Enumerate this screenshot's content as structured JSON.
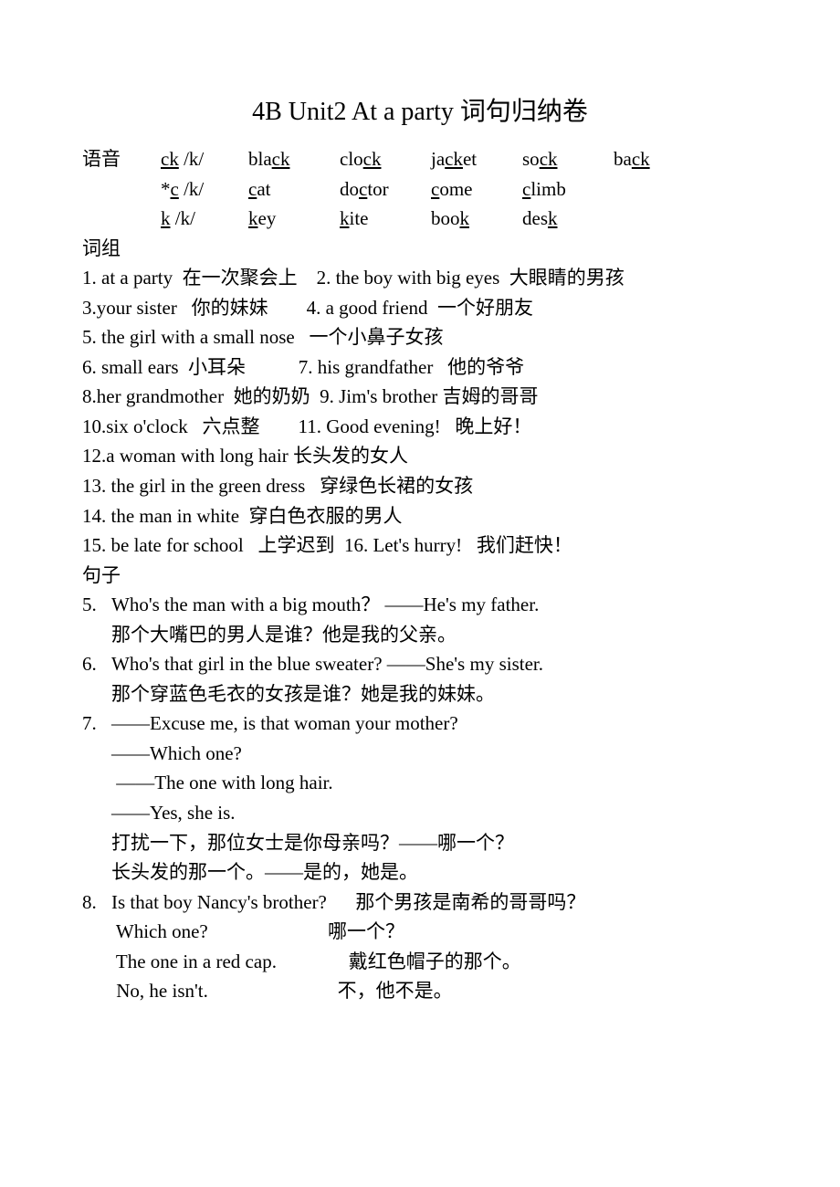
{
  "title": "4B Unit2 At a party 词句归纳卷",
  "phonetics_label": "语音",
  "phonetics": {
    "rows": [
      {
        "pattern_pre": "",
        "pattern_u": "ck",
        "pattern_post": " /k/",
        "words": [
          {
            "pre": "bla",
            "u": "ck",
            "post": ""
          },
          {
            "pre": "clo",
            "u": "ck",
            "post": ""
          },
          {
            "pre": "ja",
            "u": "ck",
            "post": "et"
          },
          {
            "pre": "so",
            "u": "ck",
            "post": ""
          },
          {
            "pre": "ba",
            "u": "ck",
            "post": ""
          }
        ]
      },
      {
        "pattern_pre": "*",
        "pattern_u": "c",
        "pattern_post": " /k/",
        "words": [
          {
            "pre": "",
            "u": "c",
            "post": "at"
          },
          {
            "pre": "do",
            "u": "c",
            "post": "tor"
          },
          {
            "pre": "",
            "u": "c",
            "post": "ome"
          },
          {
            "pre": "",
            "u": "c",
            "post": "limb"
          }
        ]
      },
      {
        "pattern_pre": "",
        "pattern_u": "k",
        "pattern_post": " /k/",
        "words": [
          {
            "pre": "",
            "u": "k",
            "post": "ey"
          },
          {
            "pre": "",
            "u": "k",
            "post": "ite"
          },
          {
            "pre": "boo",
            "u": "k",
            "post": ""
          },
          {
            "pre": "des",
            "u": "k",
            "post": ""
          }
        ]
      }
    ]
  },
  "phrases_label": "词组",
  "phrases": [
    "1. at a party  在一次聚会上    2. the boy with big eyes  大眼睛的男孩",
    "3.your sister   你的妹妹        4. a good friend  一个好朋友",
    "5. the girl with a small nose   一个小鼻子女孩",
    "6. small ears  小耳朵           7. his grandfather   他的爷爷",
    "8.her grandmother  她的奶奶  9. Jim's brother 吉姆的哥哥",
    "10.six o'clock   六点整        11. Good evening!   晚上好！",
    "12.a woman with long hair 长头发的女人",
    "13. the girl in the green dress   穿绿色长裙的女孩",
    "14. the man in white  穿白色衣服的男人",
    "15. be late for school   上学迟到  16. Let's hurry!   我们赶快！"
  ],
  "sentences_label": "句子",
  "sentences": [
    {
      "num": "5.",
      "lines": [
        "Who's the man with a big mouth？ ——He's my father.",
        "那个大嘴巴的男人是谁？他是我的父亲。"
      ]
    },
    {
      "num": "6.",
      "lines": [
        "Who's that girl in the blue sweater? ——She's my sister.",
        "那个穿蓝色毛衣的女孩是谁？她是我的妹妹。"
      ]
    },
    {
      "num": "7.",
      "lines": [
        "——Excuse me, is that woman your mother?",
        "——Which one?",
        " ——The one with long hair.",
        "——Yes, she is.",
        "打扰一下，那位女士是你母亲吗？——哪一个？",
        "长头发的那一个。——是的，她是。"
      ]
    },
    {
      "num": "8.",
      "lines": [
        "Is that boy Nancy's brother?      那个男孩是南希的哥哥吗？",
        " Which one?                         哪一个？",
        " The one in a red cap.               戴红色帽子的那个。",
        " No, he isn't.                           不，他不是。"
      ]
    }
  ]
}
